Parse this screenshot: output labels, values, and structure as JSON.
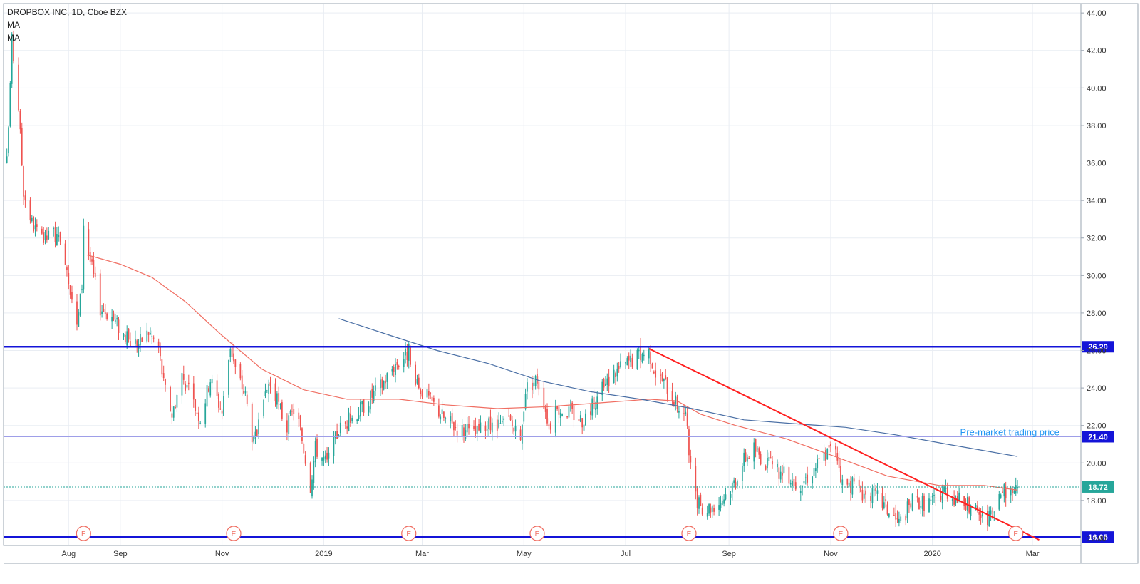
{
  "legend": {
    "symbol": "DROPBOX INC, 1D, Cboe BZX",
    "indicators": [
      "MA",
      "MA"
    ]
  },
  "colors": {
    "up": "#26a69a",
    "down": "#ef5350",
    "ma_short": "#f06e62",
    "ma_long": "#4a6fa5",
    "support_line": "#1414d8",
    "pre_market_line": "#9e9ee8",
    "trendline": "#ff2020",
    "current_price_line": "#26a69a",
    "grid": "#e9edf3",
    "earnings": "#f06e62",
    "annotation": "#2196f3"
  },
  "chart_data": {
    "type": "candlestick",
    "title": "DROPBOX INC, 1D, Cboe BZX",
    "x_axis": {
      "type": "date",
      "range": [
        "2018-06-23",
        "2020-03-30"
      ],
      "tick_labels": [
        "Aug",
        "Sep",
        "Nov",
        "2019",
        "Mar",
        "May",
        "Jul",
        "Sep",
        "Nov",
        "2020",
        "Mar"
      ],
      "tick_dates": [
        "2018-08-01",
        "2018-09-01",
        "2018-11-01",
        "2019-01-01",
        "2019-03-01",
        "2019-05-01",
        "2019-07-01",
        "2019-09-01",
        "2019-11-01",
        "2020-01-01",
        "2020-03-01"
      ]
    },
    "y_axis": {
      "position": "right",
      "range": [
        15.6,
        44.5
      ],
      "tick_labels": [
        "16.00",
        "18.00",
        "20.00",
        "22.00",
        "24.00",
        "26.00",
        "28.00",
        "30.00",
        "32.00",
        "34.00",
        "36.00",
        "38.00",
        "40.00",
        "42.00",
        "44.00"
      ],
      "ticks": [
        16,
        18,
        20,
        22,
        24,
        26,
        28,
        30,
        32,
        34,
        36,
        38,
        40,
        42,
        44
      ]
    },
    "grid": true,
    "price_anchors": [
      [
        "2018-06-23",
        32.0
      ],
      [
        "2018-06-26",
        38.0
      ],
      [
        "2018-06-28",
        42.5
      ],
      [
        "2018-07-02",
        39.0
      ],
      [
        "2018-07-05",
        34.5
      ],
      [
        "2018-07-10",
        32.8
      ],
      [
        "2018-07-16",
        31.8
      ],
      [
        "2018-07-23",
        32.3
      ],
      [
        "2018-07-30",
        31.0
      ],
      [
        "2018-08-06",
        27.2
      ],
      [
        "2018-08-09",
        29.5
      ],
      [
        "2018-08-10",
        32.8
      ],
      [
        "2018-08-13",
        31.2
      ],
      [
        "2018-08-20",
        28.3
      ],
      [
        "2018-08-27",
        27.8
      ],
      [
        "2018-09-05",
        26.6
      ],
      [
        "2018-09-12",
        26.4
      ],
      [
        "2018-09-18",
        27.0
      ],
      [
        "2018-09-24",
        26.2
      ],
      [
        "2018-09-27",
        24.2
      ],
      [
        "2018-10-02",
        22.6
      ],
      [
        "2018-10-08",
        24.7
      ],
      [
        "2018-10-14",
        23.4
      ],
      [
        "2018-10-19",
        22.4
      ],
      [
        "2018-10-25",
        24.5
      ],
      [
        "2018-11-01",
        22.7
      ],
      [
        "2018-11-06",
        26.3
      ],
      [
        "2018-11-09",
        25.0
      ],
      [
        "2018-11-15",
        23.6
      ],
      [
        "2018-11-20",
        21.0
      ],
      [
        "2018-11-25",
        22.5
      ],
      [
        "2018-11-29",
        24.3
      ],
      [
        "2018-12-04",
        23.3
      ],
      [
        "2018-12-10",
        21.9
      ],
      [
        "2018-12-15",
        23.1
      ],
      [
        "2018-12-20",
        20.8
      ],
      [
        "2018-12-24",
        18.8
      ],
      [
        "2018-12-27",
        20.8
      ],
      [
        "2019-01-03",
        20.0
      ],
      [
        "2019-01-10",
        21.8
      ],
      [
        "2019-01-20",
        22.6
      ],
      [
        "2019-01-28",
        23.4
      ],
      [
        "2019-02-05",
        24.2
      ],
      [
        "2019-02-12",
        25.2
      ],
      [
        "2019-02-21",
        25.9
      ],
      [
        "2019-02-23",
        24.2
      ],
      [
        "2019-03-01",
        23.9
      ],
      [
        "2019-03-08",
        23.1
      ],
      [
        "2019-03-15",
        22.3
      ],
      [
        "2019-03-22",
        21.9
      ],
      [
        "2019-04-01",
        21.5
      ],
      [
        "2019-04-08",
        22.0
      ],
      [
        "2019-04-15",
        21.8
      ],
      [
        "2019-04-22",
        22.3
      ],
      [
        "2019-04-29",
        21.0
      ],
      [
        "2019-05-02",
        24.0
      ],
      [
        "2019-05-09",
        24.5
      ],
      [
        "2019-05-13",
        23.3
      ],
      [
        "2019-05-16",
        22.0
      ],
      [
        "2019-05-22",
        22.9
      ],
      [
        "2019-05-29",
        22.7
      ],
      [
        "2019-06-05",
        22.3
      ],
      [
        "2019-06-10",
        22.9
      ],
      [
        "2019-06-17",
        23.9
      ],
      [
        "2019-06-24",
        24.8
      ],
      [
        "2019-07-01",
        25.3
      ],
      [
        "2019-07-10",
        25.8
      ],
      [
        "2019-07-15",
        26.0
      ],
      [
        "2019-07-19",
        24.8
      ],
      [
        "2019-07-25",
        24.2
      ],
      [
        "2019-08-01",
        23.1
      ],
      [
        "2019-08-06",
        22.6
      ],
      [
        "2019-08-09",
        19.6
      ],
      [
        "2019-08-13",
        17.8
      ],
      [
        "2019-08-19",
        17.6
      ],
      [
        "2019-08-26",
        17.9
      ],
      [
        "2019-09-03",
        18.8
      ],
      [
        "2019-09-10",
        20.2
      ],
      [
        "2019-09-16",
        20.8
      ],
      [
        "2019-09-23",
        20.0
      ],
      [
        "2019-09-30",
        19.6
      ],
      [
        "2019-10-07",
        19.2
      ],
      [
        "2019-10-14",
        18.9
      ],
      [
        "2019-10-21",
        19.6
      ],
      [
        "2019-10-28",
        20.4
      ],
      [
        "2019-11-04",
        20.9
      ],
      [
        "2019-11-08",
        18.9
      ],
      [
        "2019-11-15",
        18.8
      ],
      [
        "2019-11-22",
        18.3
      ],
      [
        "2019-11-29",
        18.2
      ],
      [
        "2019-12-06",
        17.4
      ],
      [
        "2019-12-12",
        16.8
      ],
      [
        "2019-12-16",
        17.4
      ],
      [
        "2019-12-20",
        18.0
      ],
      [
        "2019-12-27",
        17.9
      ],
      [
        "2020-01-03",
        18.0
      ],
      [
        "2020-01-08",
        18.6
      ],
      [
        "2020-01-14",
        18.2
      ],
      [
        "2020-01-20",
        17.9
      ],
      [
        "2020-01-27",
        17.4
      ],
      [
        "2020-02-03",
        16.9
      ],
      [
        "2020-02-07",
        17.4
      ],
      [
        "2020-02-11",
        18.4
      ],
      [
        "2020-02-18",
        18.6
      ],
      [
        "2020-02-21",
        18.72
      ]
    ],
    "ma_short": [
      [
        "2018-08-12",
        31.1
      ],
      [
        "2018-09-01",
        30.6
      ],
      [
        "2018-09-20",
        29.9
      ],
      [
        "2018-10-10",
        28.6
      ],
      [
        "2018-11-01",
        26.8
      ],
      [
        "2018-11-25",
        25.0
      ],
      [
        "2018-12-20",
        23.9
      ],
      [
        "2019-01-15",
        23.4
      ],
      [
        "2019-02-15",
        23.4
      ],
      [
        "2019-03-15",
        23.1
      ],
      [
        "2019-04-15",
        22.9
      ],
      [
        "2019-05-15",
        23.0
      ],
      [
        "2019-06-15",
        23.2
      ],
      [
        "2019-07-15",
        23.4
      ],
      [
        "2019-08-01",
        23.3
      ],
      [
        "2019-08-15",
        22.6
      ],
      [
        "2019-09-05",
        22.0
      ],
      [
        "2019-10-05",
        21.3
      ],
      [
        "2019-11-05",
        20.3
      ],
      [
        "2019-12-05",
        19.3
      ],
      [
        "2020-01-05",
        18.8
      ],
      [
        "2020-02-01",
        18.8
      ],
      [
        "2020-02-21",
        18.55
      ]
    ],
    "ma_long": [
      [
        "2019-01-10",
        27.7
      ],
      [
        "2019-02-10",
        26.8
      ],
      [
        "2019-03-10",
        26.0
      ],
      [
        "2019-04-10",
        25.3
      ],
      [
        "2019-05-10",
        24.4
      ],
      [
        "2019-06-10",
        23.8
      ],
      [
        "2019-07-10",
        23.4
      ],
      [
        "2019-08-10",
        22.9
      ],
      [
        "2019-09-10",
        22.3
      ],
      [
        "2019-10-10",
        22.1
      ],
      [
        "2019-11-10",
        21.9
      ],
      [
        "2019-12-10",
        21.5
      ],
      [
        "2020-01-10",
        21.0
      ],
      [
        "2020-02-21",
        20.35
      ]
    ],
    "horizontal_lines": [
      {
        "name": "resistance",
        "value": 26.2,
        "label": "26.20",
        "style": "solid-thick"
      },
      {
        "name": "pre-market",
        "value": 21.4,
        "label": "21.40",
        "style": "thin",
        "annotation": "Pre-market trading price"
      },
      {
        "name": "last-price",
        "value": 18.72,
        "label": "18.72",
        "style": "dotted"
      },
      {
        "name": "support",
        "value": 16.05,
        "label": "16.05",
        "style": "solid-thick"
      }
    ],
    "trendline": {
      "start": [
        "2019-07-15",
        26.1
      ],
      "end": [
        "2020-03-05",
        15.9
      ]
    },
    "earnings_marker": "E",
    "earnings_dates": [
      "2018-08-10",
      "2018-11-08",
      "2019-02-21",
      "2019-05-09",
      "2019-08-08",
      "2019-11-07",
      "2020-02-20"
    ]
  }
}
